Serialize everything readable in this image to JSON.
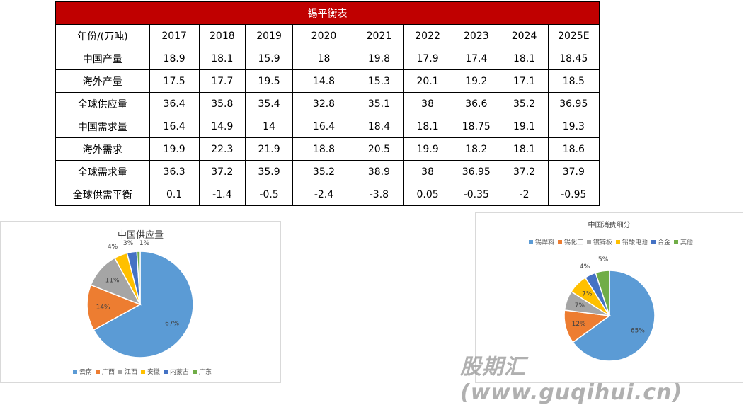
{
  "table": {
    "title": "锡平衡表",
    "header": [
      "年份/(万吨)",
      "2017",
      "2018",
      "2019",
      "2020",
      "2021",
      "2022",
      "2023",
      "2024",
      "2025E"
    ],
    "rows": [
      [
        "中国产量",
        "18.9",
        "18.1",
        "15.9",
        "18",
        "19.8",
        "17.9",
        "17.4",
        "18.1",
        "18.45"
      ],
      [
        "海外产量",
        "17.5",
        "17.7",
        "19.5",
        "14.8",
        "15.3",
        "20.1",
        "19.2",
        "17.1",
        "18.5"
      ],
      [
        "全球供应量",
        "36.4",
        "35.8",
        "35.4",
        "32.8",
        "35.1",
        "38",
        "36.6",
        "35.2",
        "36.95"
      ],
      [
        "中国需求量",
        "16.4",
        "14.9",
        "14",
        "16.4",
        "18.4",
        "18.1",
        "18.75",
        "19.1",
        "19.3"
      ],
      [
        "海外需求",
        "19.9",
        "22.3",
        "21.9",
        "18.8",
        "20.5",
        "19.9",
        "18.2",
        "18.1",
        "18.6"
      ],
      [
        "全球需求量",
        "36.3",
        "37.2",
        "35.9",
        "35.2",
        "38.9",
        "38",
        "36.95",
        "37.2",
        "37.9"
      ],
      [
        "全球供需平衡",
        "0.1",
        "-1.4",
        "-0.5",
        "-2.4",
        "-3.8",
        "0.05",
        "-0.35",
        "-2",
        "-0.95"
      ]
    ]
  },
  "chart_data": [
    {
      "type": "pie",
      "title": "中国供应量",
      "legend": "bottom",
      "categories": [
        "云南",
        "广西",
        "江西",
        "安徽",
        "内蒙古",
        "广东"
      ],
      "values": [
        67,
        14,
        11,
        4,
        3,
        1
      ],
      "labels": [
        "67%",
        "14%",
        "11%",
        "4%",
        "3%",
        "1%"
      ],
      "colors": [
        "#5b9bd5",
        "#ed7d31",
        "#a5a5a5",
        "#ffc000",
        "#4472c4",
        "#70ad47"
      ]
    },
    {
      "type": "pie",
      "title": "中国消费细分",
      "legend": "top",
      "categories": [
        "锡焊料",
        "锡化工",
        "镀锌板",
        "铅酸电池",
        "合金",
        "其他"
      ],
      "values": [
        65,
        12,
        7,
        7,
        4,
        5
      ],
      "labels": [
        "65%",
        "12%",
        "7%",
        "7%",
        "4%",
        "5%"
      ],
      "colors": [
        "#5b9bd5",
        "#ed7d31",
        "#a5a5a5",
        "#ffc000",
        "#4472c4",
        "#70ad47"
      ]
    }
  ],
  "watermark": "股期汇(www.guqihui.cn)"
}
